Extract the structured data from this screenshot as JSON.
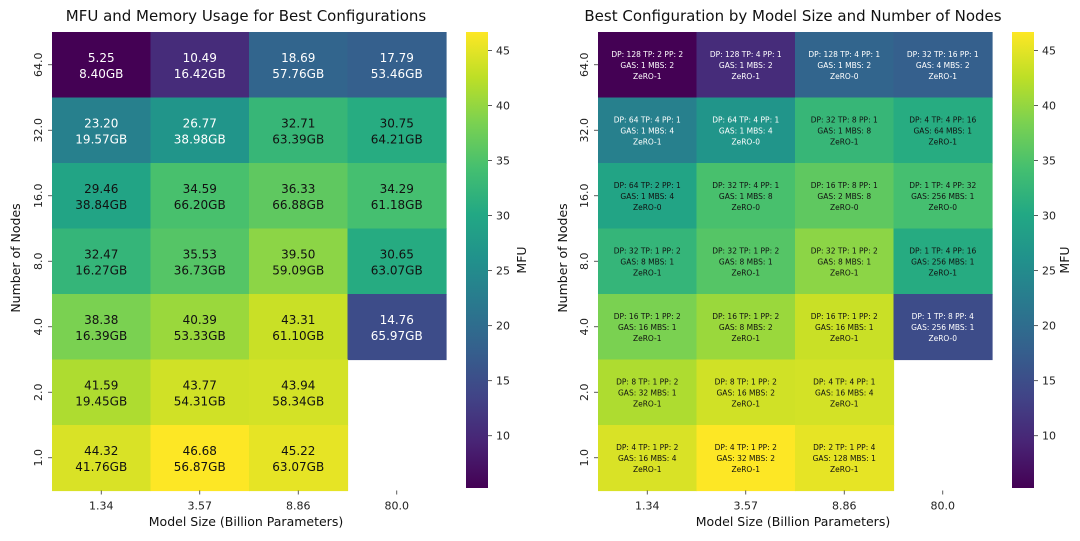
{
  "chart_data": [
    {
      "type": "heatmap",
      "title": "MFU and Memory Usage for Best Configurations",
      "xlabel": "Model Size (Billion Parameters)",
      "ylabel": "Number of Nodes",
      "x_categories": [
        "1.34",
        "3.57",
        "8.86",
        "80.0"
      ],
      "y_categories": [
        "64.0",
        "32.0",
        "16.0",
        "8.0",
        "4.0",
        "2.0",
        "1.0"
      ],
      "colorbar_label": "MFU",
      "colorbar_ticks": [
        10,
        15,
        20,
        25,
        30,
        35,
        40,
        45
      ],
      "vmin": 5.25,
      "vmax": 46.68,
      "mfu": [
        [
          5.25,
          10.49,
          18.69,
          17.79
        ],
        [
          23.2,
          26.77,
          32.71,
          30.75
        ],
        [
          29.46,
          34.59,
          36.33,
          34.29
        ],
        [
          32.47,
          35.53,
          39.5,
          30.65
        ],
        [
          38.38,
          40.39,
          43.31,
          14.76
        ],
        [
          41.59,
          43.77,
          43.94,
          null
        ],
        [
          44.32,
          46.68,
          45.22,
          null
        ]
      ],
      "mfu_labels": [
        [
          "5.25",
          "10.49",
          "18.69",
          "17.79"
        ],
        [
          "23.20",
          "26.77",
          "32.71",
          "30.75"
        ],
        [
          "29.46",
          "34.59",
          "36.33",
          "34.29"
        ],
        [
          "32.47",
          "35.53",
          "39.50",
          "30.65"
        ],
        [
          "38.38",
          "40.39",
          "43.31",
          "14.76"
        ],
        [
          "41.59",
          "43.77",
          "43.94",
          null
        ],
        [
          "44.32",
          "46.68",
          "45.22",
          null
        ]
      ],
      "memory": [
        [
          "8.40GB",
          "16.42GB",
          "57.76GB",
          "53.46GB"
        ],
        [
          "19.57GB",
          "38.98GB",
          "63.39GB",
          "64.21GB"
        ],
        [
          "38.84GB",
          "66.20GB",
          "66.88GB",
          "61.18GB"
        ],
        [
          "16.27GB",
          "36.73GB",
          "59.09GB",
          "63.07GB"
        ],
        [
          "16.39GB",
          "53.33GB",
          "61.10GB",
          "65.97GB"
        ],
        [
          "19.45GB",
          "54.31GB",
          "58.34GB",
          null
        ],
        [
          "41.76GB",
          "56.87GB",
          "63.07GB",
          null
        ]
      ]
    },
    {
      "type": "heatmap",
      "title": "Best Configuration by Model Size and Number of Nodes",
      "xlabel": "Model Size (Billion Parameters)",
      "ylabel": "Number of Nodes",
      "x_categories": [
        "1.34",
        "3.57",
        "8.86",
        "80.0"
      ],
      "y_categories": [
        "64.0",
        "32.0",
        "16.0",
        "8.0",
        "4.0",
        "2.0",
        "1.0"
      ],
      "colorbar_label": "MFU",
      "colorbar_ticks": [
        10,
        15,
        20,
        25,
        30,
        35,
        40,
        45
      ],
      "configs": [
        [
          [
            "DP: 128  TP: 2  PP: 2",
            "GAS: 1  MBS: 2",
            "ZeRO-1"
          ],
          [
            "DP: 128  TP: 4  PP: 1",
            "GAS: 1  MBS: 2",
            "ZeRO-1"
          ],
          [
            "DP: 128  TP: 4  PP: 1",
            "GAS: 1  MBS: 2",
            "ZeRO-0"
          ],
          [
            "DP: 32  TP: 16  PP: 1",
            "GAS: 4  MBS: 2",
            "ZeRO-1"
          ]
        ],
        [
          [
            "DP: 64  TP: 4  PP: 1",
            "GAS: 1  MBS: 4",
            "ZeRO-1"
          ],
          [
            "DP: 64  TP: 4  PP: 1",
            "GAS: 1  MBS: 4",
            "ZeRO-0"
          ],
          [
            "DP: 32  TP: 8  PP: 1",
            "GAS: 1  MBS: 8",
            "ZeRO-1"
          ],
          [
            "DP: 4  TP: 4  PP: 16",
            "GAS: 64  MBS: 1",
            "ZeRO-1"
          ]
        ],
        [
          [
            "DP: 64  TP: 2  PP: 1",
            "GAS: 1  MBS: 4",
            "ZeRO-0"
          ],
          [
            "DP: 32  TP: 4  PP: 1",
            "GAS: 1  MBS: 8",
            "ZeRO-0"
          ],
          [
            "DP: 16  TP: 8  PP: 1",
            "GAS: 2  MBS: 8",
            "ZeRO-0"
          ],
          [
            "DP: 1  TP: 4  PP: 32",
            "GAS: 256  MBS: 1",
            "ZeRO-0"
          ]
        ],
        [
          [
            "DP: 32  TP: 1  PP: 2",
            "GAS: 8  MBS: 1",
            "ZeRO-1"
          ],
          [
            "DP: 32  TP: 1  PP: 2",
            "GAS: 8  MBS: 1",
            "ZeRO-1"
          ],
          [
            "DP: 32  TP: 1  PP: 2",
            "GAS: 8  MBS: 1",
            "ZeRO-1"
          ],
          [
            "DP: 1  TP: 4  PP: 16",
            "GAS: 256  MBS: 1",
            "ZeRO-1"
          ]
        ],
        [
          [
            "DP: 16  TP: 1  PP: 2",
            "GAS: 16  MBS: 1",
            "ZeRO-1"
          ],
          [
            "DP: 16  TP: 1  PP: 2",
            "GAS: 8  MBS: 2",
            "ZeRO-1"
          ],
          [
            "DP: 16  TP: 1  PP: 2",
            "GAS: 16  MBS: 1",
            "ZeRO-1"
          ],
          [
            "DP: 1  TP: 8  PP: 4",
            "GAS: 256  MBS: 1",
            "ZeRO-0"
          ]
        ],
        [
          [
            "DP: 8  TP: 1  PP: 2",
            "GAS: 32  MBS: 1",
            "ZeRO-1"
          ],
          [
            "DP: 8  TP: 1  PP: 2",
            "GAS: 16  MBS: 2",
            "ZeRO-1"
          ],
          [
            "DP: 4  TP: 4  PP: 1",
            "GAS: 16  MBS: 4",
            "ZeRO-1"
          ],
          null
        ],
        [
          [
            "DP: 4  TP: 1  PP: 2",
            "GAS: 16  MBS: 4",
            "ZeRO-1"
          ],
          [
            "DP: 4  TP: 1  PP: 2",
            "GAS: 32  MBS: 2",
            "ZeRO-1"
          ],
          [
            "DP: 2  TP: 1  PP: 4",
            "GAS: 128  MBS: 1",
            "ZeRO-1"
          ],
          null
        ]
      ]
    }
  ]
}
